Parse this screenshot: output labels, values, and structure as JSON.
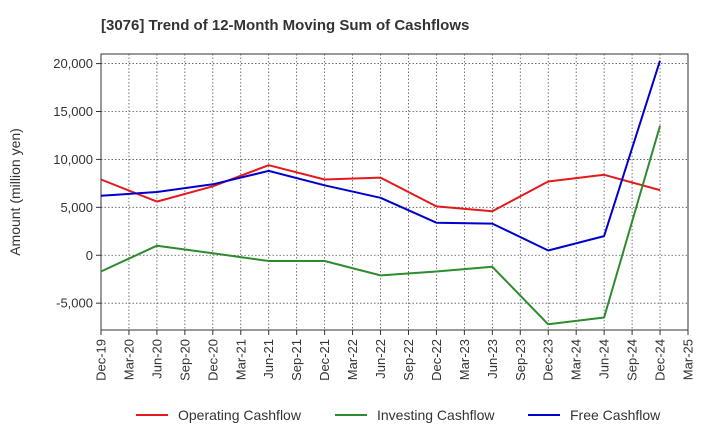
{
  "chart_data": {
    "type": "line",
    "title": "[3076]  Trend of 12-Month Moving Sum of Cashflows",
    "ylabel": "Amount (million yen)",
    "xlabel": "",
    "categories": [
      "Dec-19",
      "Mar-20",
      "Jun-20",
      "Sep-20",
      "Dec-20",
      "Mar-21",
      "Jun-21",
      "Sep-21",
      "Dec-21",
      "Mar-22",
      "Jun-22",
      "Sep-22",
      "Dec-22",
      "Mar-23",
      "Jun-23",
      "Sep-23",
      "Dec-23",
      "Mar-24",
      "Jun-24",
      "Sep-24",
      "Dec-24",
      "Mar-25"
    ],
    "ylim": [
      -7800,
      21000
    ],
    "yticks": [
      -5000,
      0,
      5000,
      10000,
      15000,
      20000
    ],
    "ytick_labels": [
      "-5,000",
      "0",
      "5,000",
      "10,000",
      "15,000",
      "20,000"
    ],
    "grid": true,
    "legend_position": "bottom",
    "series": [
      {
        "name": "Operating Cashflow",
        "color": "#e31a1c",
        "points": [
          [
            "Dec-19",
            7900
          ],
          [
            "Jun-20",
            5600
          ],
          [
            "Dec-20",
            7200
          ],
          [
            "Jun-21",
            9400
          ],
          [
            "Dec-21",
            7900
          ],
          [
            "Jun-22",
            8100
          ],
          [
            "Dec-22",
            5100
          ],
          [
            "Jun-23",
            4600
          ],
          [
            "Dec-23",
            7700
          ],
          [
            "Jun-24",
            8400
          ],
          [
            "Dec-24",
            6800
          ]
        ]
      },
      {
        "name": "Investing Cashflow",
        "color": "#2e8b2e",
        "points": [
          [
            "Dec-19",
            -1700
          ],
          [
            "Jun-20",
            1000
          ],
          [
            "Dec-20",
            200
          ],
          [
            "Jun-21",
            -600
          ],
          [
            "Dec-21",
            -600
          ],
          [
            "Jun-22",
            -2100
          ],
          [
            "Dec-22",
            -1700
          ],
          [
            "Jun-23",
            -1200
          ],
          [
            "Dec-23",
            -7200
          ],
          [
            "Jun-24",
            -6500
          ],
          [
            "Dec-24",
            13500
          ]
        ]
      },
      {
        "name": "Free Cashflow",
        "color": "#0000cc",
        "points": [
          [
            "Dec-19",
            6200
          ],
          [
            "Jun-20",
            6600
          ],
          [
            "Dec-20",
            7400
          ],
          [
            "Jun-21",
            8800
          ],
          [
            "Dec-21",
            7300
          ],
          [
            "Jun-22",
            6000
          ],
          [
            "Dec-22",
            3400
          ],
          [
            "Jun-23",
            3300
          ],
          [
            "Dec-23",
            500
          ],
          [
            "Jun-24",
            2000
          ],
          [
            "Dec-24",
            20300
          ]
        ]
      }
    ]
  }
}
